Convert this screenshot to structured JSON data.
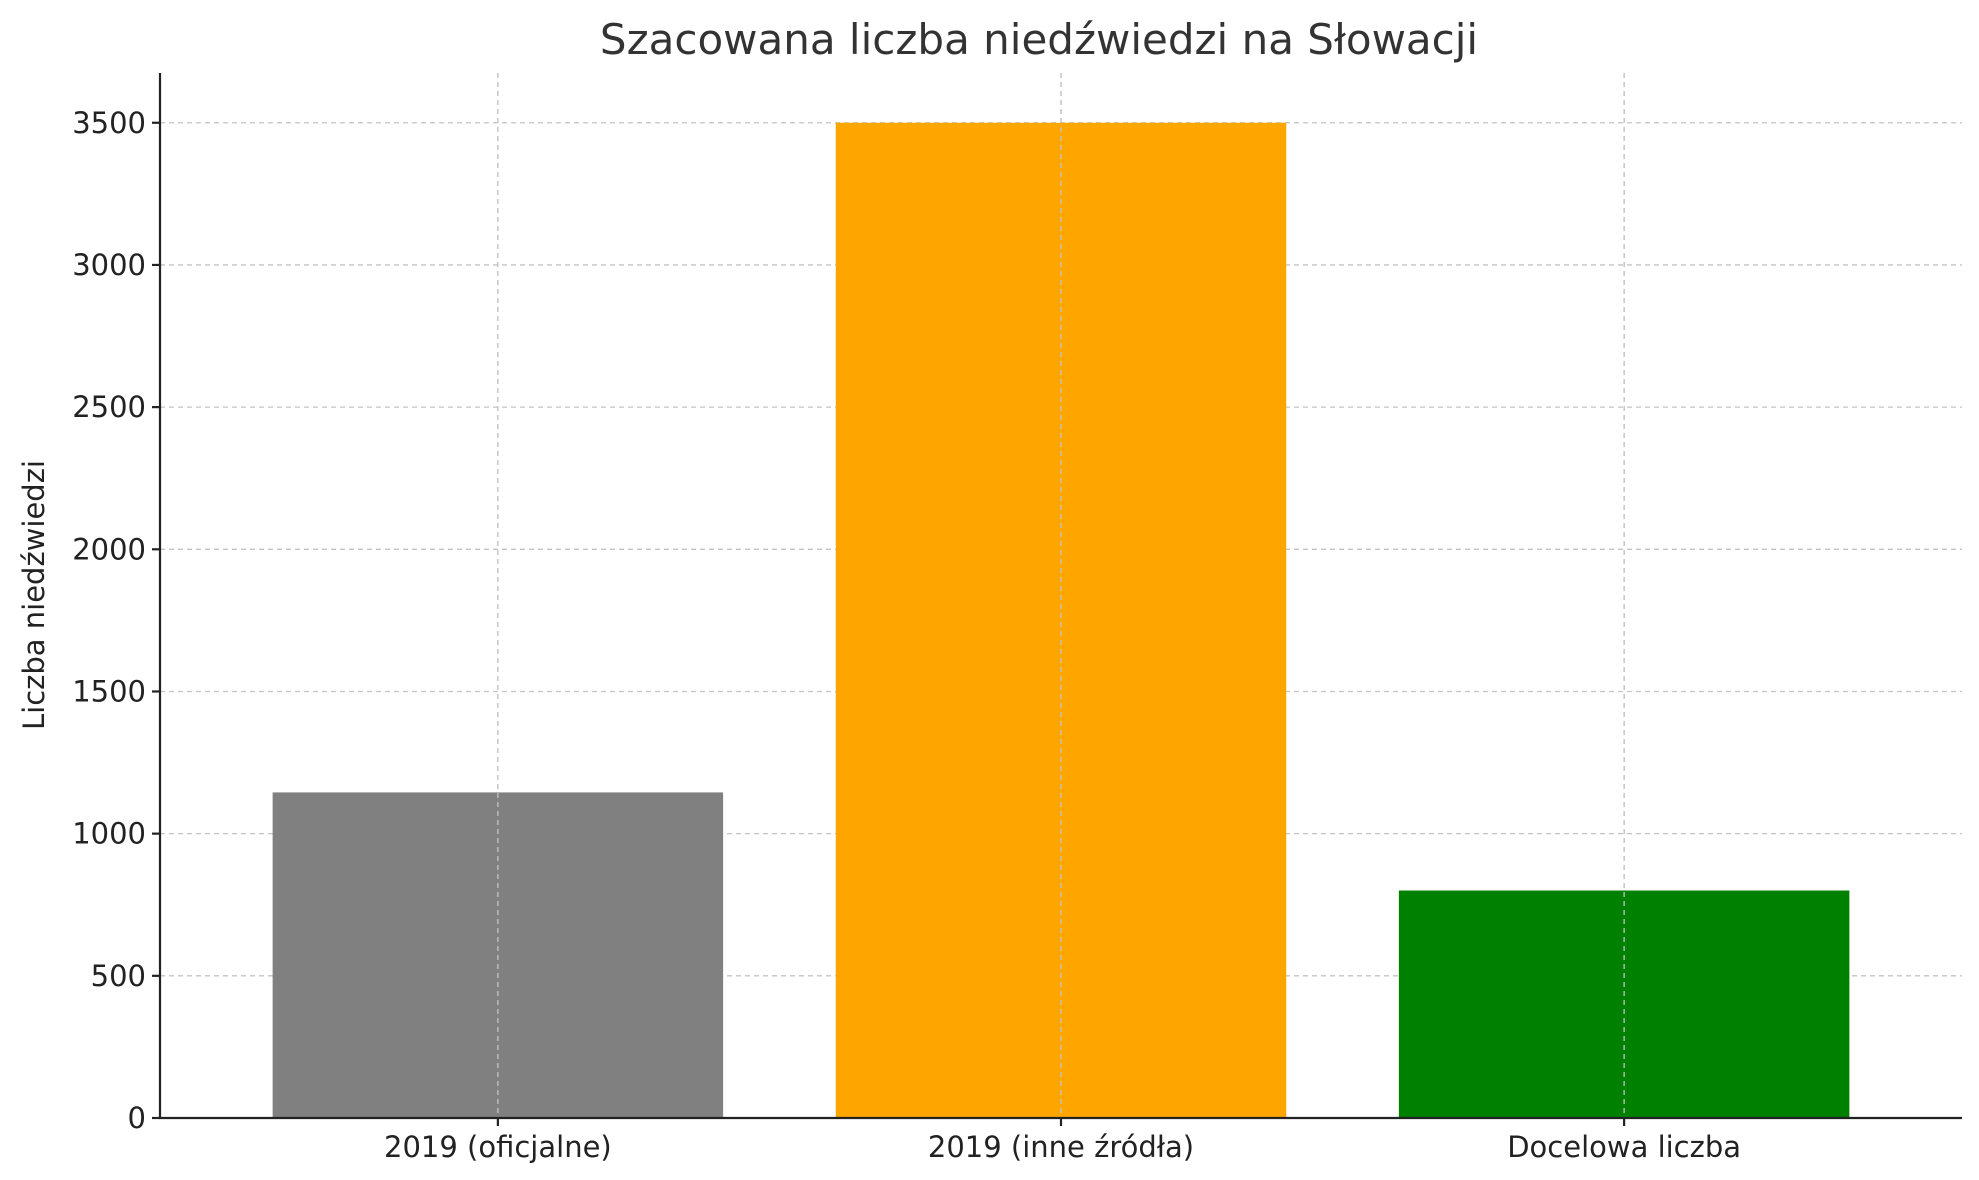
{
  "chart_data": {
    "type": "bar",
    "title": "Szacowana liczba niedźwiedzi na Słowacji",
    "xlabel": "",
    "ylabel": "Liczba niedźwiedzi",
    "categories": [
      "2019 (oficjalne)",
      "2019 (inne źródła)",
      "Docelowa liczba"
    ],
    "values": [
      1145,
      3500,
      800
    ],
    "colors": [
      "#808080",
      "#ffa500",
      "#008000"
    ],
    "ylim": [
      0,
      3675
    ],
    "yticks": [
      0,
      500,
      1000,
      1500,
      2000,
      2500,
      3000,
      3500
    ],
    "grid": true,
    "legend": false
  }
}
